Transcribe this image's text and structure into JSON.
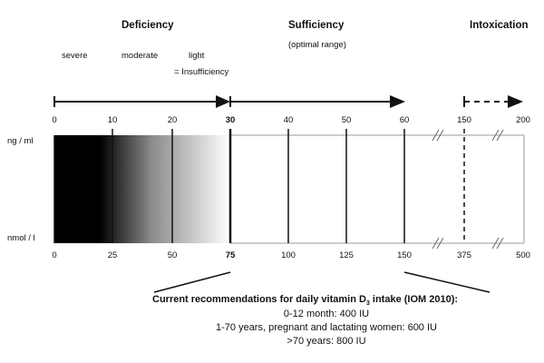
{
  "categories": {
    "deficiency": "Deficiency",
    "sufficiency": "Sufficiency",
    "sufficiency_note": "(optimal range)",
    "intoxication": "Intoxication"
  },
  "severity": {
    "severe": "severe",
    "moderate": "moderate",
    "light": "light",
    "insufficiency": "= Insufficiency"
  },
  "units": {
    "top": "ng / ml",
    "bottom": "nmol / l"
  },
  "ticks_top": [
    "0",
    "10",
    "20",
    "30",
    "40",
    "50",
    "60",
    "150",
    "200"
  ],
  "ticks_bottom": [
    "0",
    "25",
    "50",
    "75",
    "100",
    "125",
    "150",
    "375",
    "500"
  ],
  "recommendations": {
    "title_pre": "Current recommendations for daily vitamin D",
    "title_sub": "3",
    "title_post": " intake (IOM 2010):",
    "lines": [
      "0-12 month: 400 IU",
      "1-70 years, pregnant and lactating women: 600 IU",
      ">70 years: 800 IU"
    ]
  },
  "colors": {
    "gradient_start": "#000000",
    "gradient_end": "#ffffff",
    "lines": "#111111",
    "grey_lines": "#999999"
  }
}
